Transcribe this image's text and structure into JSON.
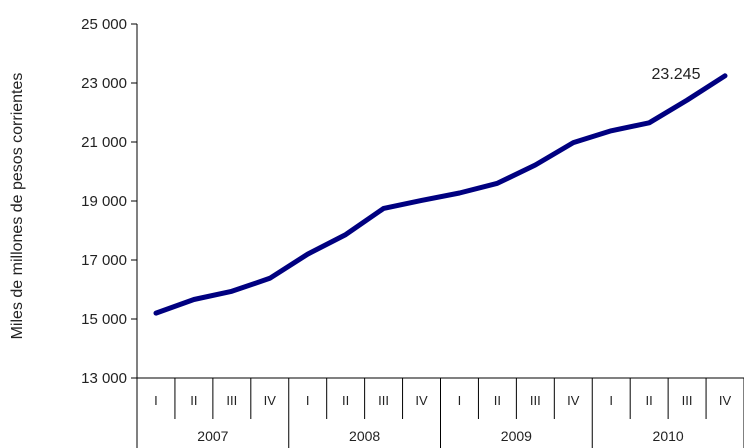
{
  "chart_data": {
    "type": "line",
    "title": "",
    "xlabel": "",
    "ylabel": "Miles de millones de pesos corrientes",
    "ylim": [
      13000,
      25000
    ],
    "yticks": [
      13000,
      15000,
      17000,
      19000,
      21000,
      23000,
      25000
    ],
    "ytick_labels": [
      "13 000",
      "15 000",
      "17 000",
      "19 000",
      "21 000",
      "23 000",
      "25 000"
    ],
    "years": [
      "2007",
      "2008",
      "2009",
      "2010"
    ],
    "quarters": [
      "I",
      "II",
      "III",
      "IV"
    ],
    "categories": [
      "I",
      "II",
      "III",
      "IV",
      "I",
      "II",
      "III",
      "IV",
      "I",
      "II",
      "III",
      "IV",
      "I",
      "II",
      "III",
      "IV"
    ],
    "values": [
      15200,
      15660,
      15940,
      16380,
      17200,
      17860,
      18750,
      19020,
      19270,
      19600,
      20220,
      20980,
      21380,
      21650,
      22420,
      23245
    ],
    "line_color": "#000080",
    "grid": false,
    "legend": "none",
    "last_point_label": "23.245"
  }
}
